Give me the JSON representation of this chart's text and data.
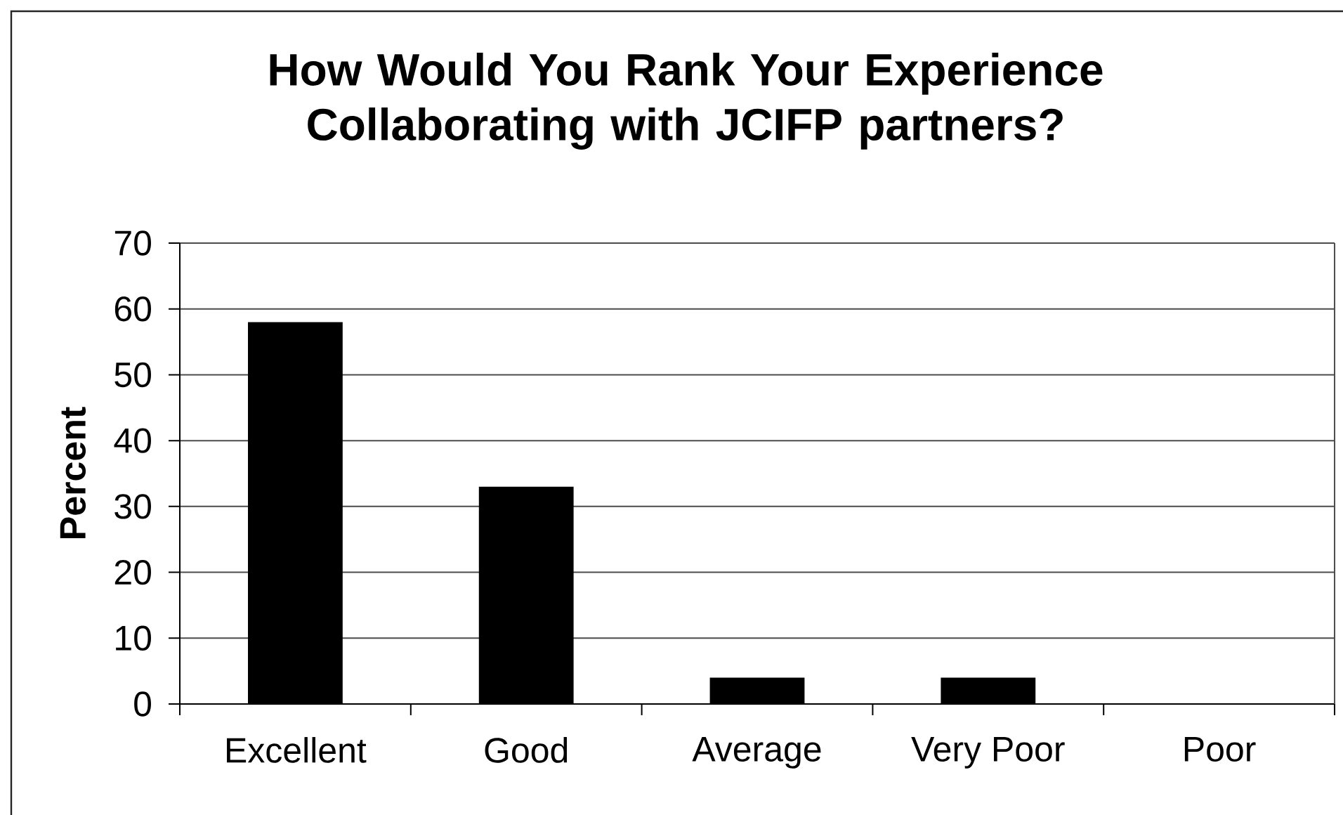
{
  "chart_data": {
    "type": "bar",
    "title": "How Would You Rank Your Experience Collaborating with JCIFP partners?",
    "ylabel": "Percent",
    "categories": [
      "Excellent",
      "Good",
      "Average",
      "Very Poor",
      "Poor"
    ],
    "values": [
      58,
      33,
      4,
      4,
      0
    ],
    "color": "#000000",
    "ylim": [
      0,
      70
    ],
    "yticks": [
      0,
      10,
      20,
      30,
      40,
      50,
      60,
      70
    ],
    "grid": "y"
  }
}
